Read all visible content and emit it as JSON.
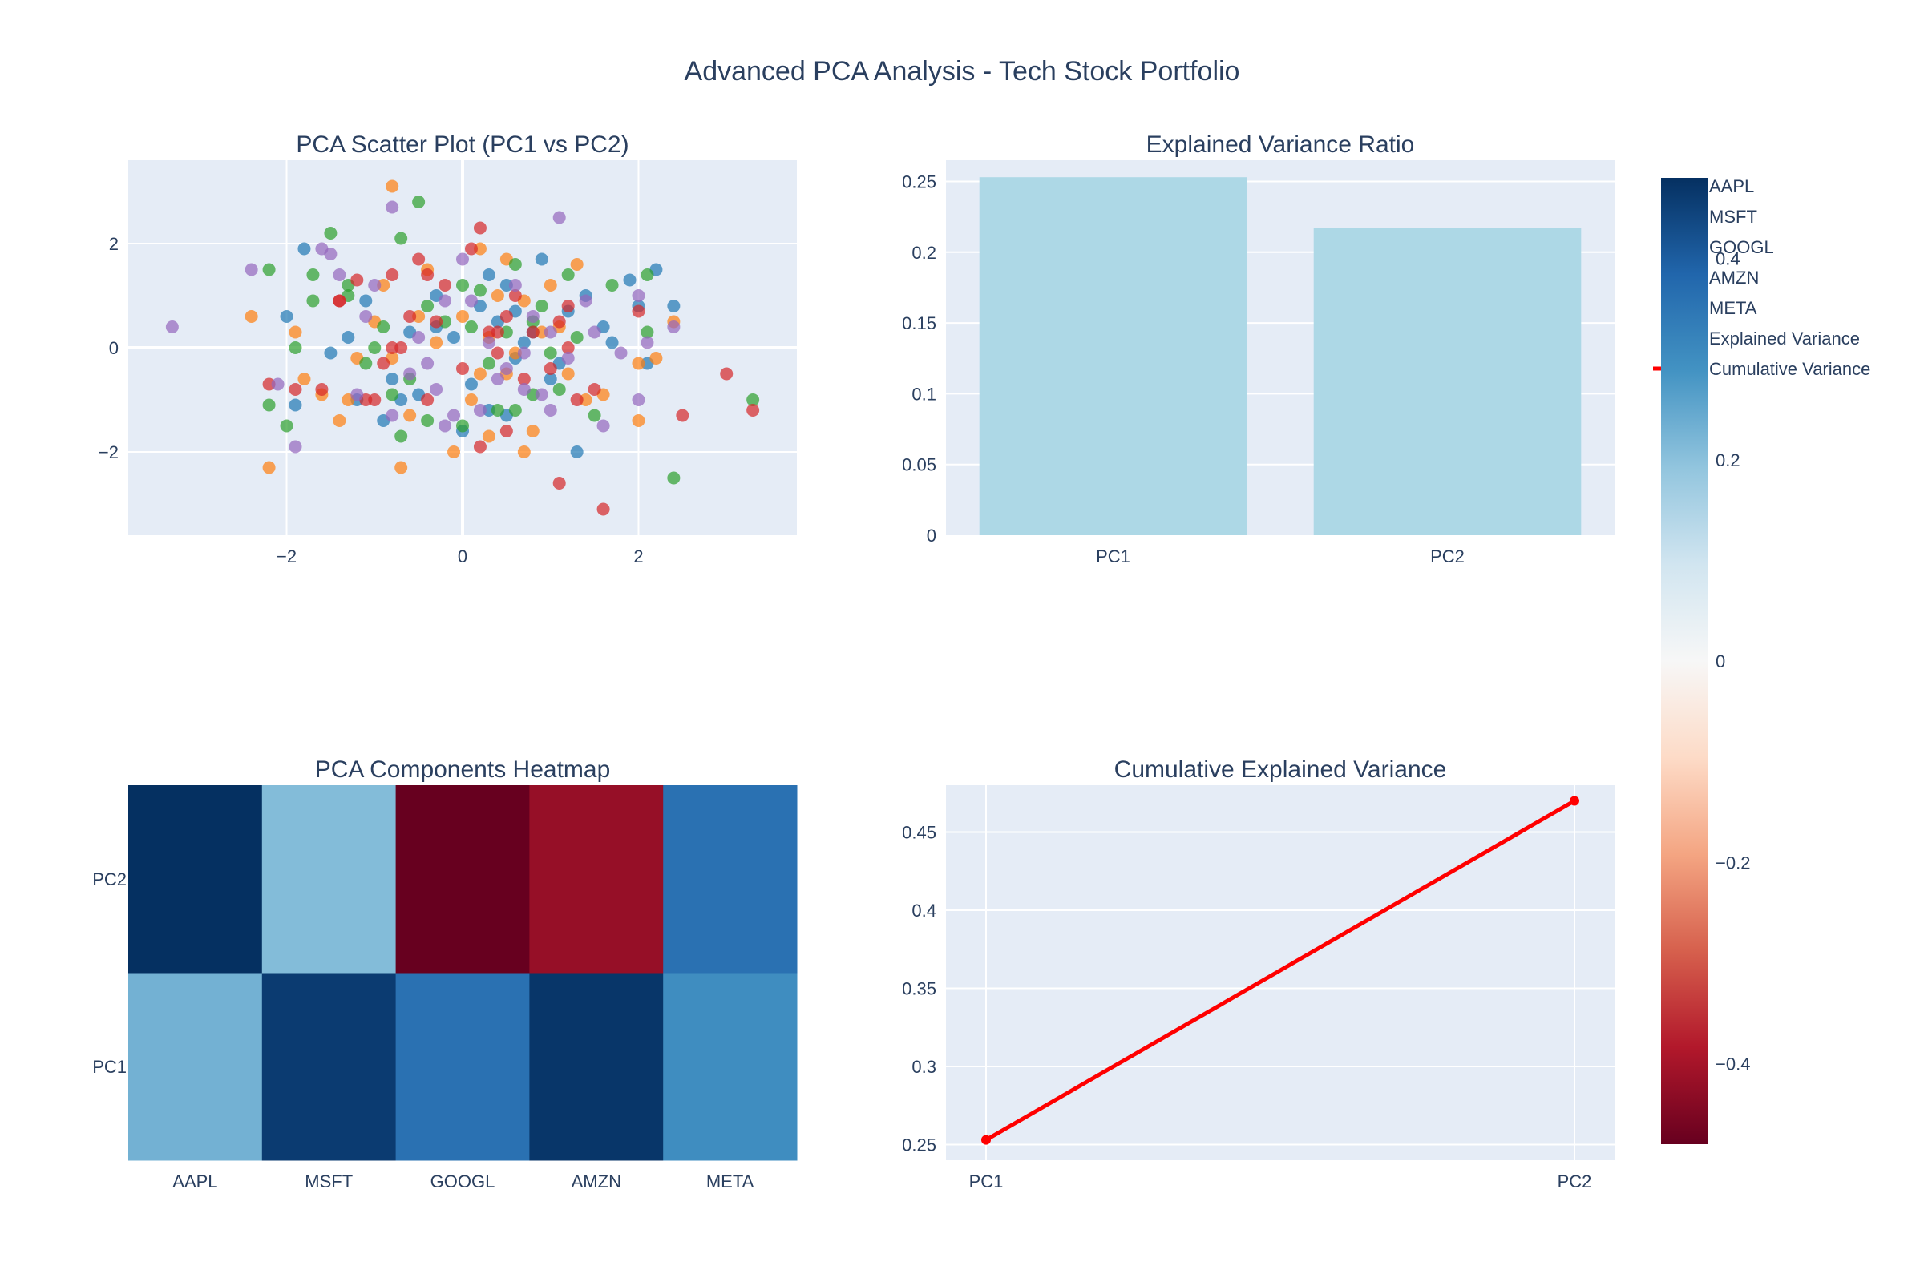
{
  "figure": {
    "title": "Advanced PCA Analysis - Tech Stock Portfolio",
    "colors": {
      "AAPL": "#1f77b4",
      "MSFT": "#ff7f0e",
      "GOOGL": "#2ca02c",
      "AMZN": "#d62728",
      "META": "#9467bd",
      "bar": "#add8e6",
      "line": "#ff0000"
    }
  },
  "chart_data": [
    {
      "type": "scatter",
      "title": "PCA Scatter Plot (PC1 vs PC2)",
      "xlabel": "",
      "ylabel": "",
      "xlim": [
        -3.8,
        3.8
      ],
      "ylim": [
        -3.6,
        3.6
      ],
      "xticks": [
        -2,
        0,
        2
      ],
      "yticks": [
        -2,
        0,
        2
      ],
      "xtick_labels": [
        "−2",
        "0",
        "2"
      ],
      "ytick_labels": [
        "−2",
        "0",
        "2"
      ],
      "series": [
        {
          "name": "AAPL",
          "points": [
            [
              -1.8,
              1.9
            ],
            [
              -2.0,
              0.6
            ],
            [
              -1.5,
              -0.1
            ],
            [
              -1.1,
              0.9
            ],
            [
              -0.8,
              -0.6
            ],
            [
              -0.6,
              0.3
            ],
            [
              -0.5,
              -0.9
            ],
            [
              -0.3,
              1.0
            ],
            [
              -0.1,
              0.2
            ],
            [
              0.1,
              -0.7
            ],
            [
              0.2,
              0.8
            ],
            [
              0.3,
              -1.2
            ],
            [
              0.4,
              0.5
            ],
            [
              0.5,
              1.2
            ],
            [
              0.6,
              -0.2
            ],
            [
              0.8,
              0.3
            ],
            [
              0.9,
              1.7
            ],
            [
              1.0,
              -0.6
            ],
            [
              1.2,
              0.7
            ],
            [
              1.4,
              1.0
            ],
            [
              1.6,
              0.4
            ],
            [
              1.9,
              1.3
            ],
            [
              2.1,
              -0.3
            ],
            [
              2.2,
              1.5
            ],
            [
              2.4,
              0.8
            ],
            [
              1.3,
              -2.0
            ],
            [
              0.5,
              -1.3
            ],
            [
              -1.2,
              -1.0
            ],
            [
              -0.9,
              -1.4
            ],
            [
              0.7,
              0.1
            ],
            [
              1.1,
              -0.3
            ],
            [
              -0.3,
              0.4
            ],
            [
              -1.9,
              -1.1
            ],
            [
              0.0,
              -1.6
            ],
            [
              0.3,
              1.4
            ],
            [
              1.7,
              0.1
            ],
            [
              -1.3,
              0.2
            ],
            [
              0.6,
              0.7
            ],
            [
              -0.7,
              -1.0
            ],
            [
              2.0,
              0.8
            ]
          ]
        },
        {
          "name": "MSFT",
          "points": [
            [
              -2.4,
              0.6
            ],
            [
              -2.2,
              -2.3
            ],
            [
              -1.9,
              0.3
            ],
            [
              -1.6,
              -0.9
            ],
            [
              -1.4,
              -1.4
            ],
            [
              -1.2,
              -0.2
            ],
            [
              -1.0,
              0.5
            ],
            [
              -0.8,
              -0.2
            ],
            [
              -0.8,
              3.1
            ],
            [
              -0.7,
              -2.3
            ],
            [
              -0.5,
              0.6
            ],
            [
              -0.3,
              0.1
            ],
            [
              -0.1,
              -2.0
            ],
            [
              0.0,
              0.6
            ],
            [
              0.2,
              -0.5
            ],
            [
              0.3,
              0.2
            ],
            [
              0.4,
              1.0
            ],
            [
              0.5,
              1.7
            ],
            [
              0.6,
              -0.1
            ],
            [
              0.7,
              0.9
            ],
            [
              0.7,
              -2.0
            ],
            [
              0.9,
              0.3
            ],
            [
              1.0,
              1.2
            ],
            [
              1.2,
              -0.5
            ],
            [
              1.3,
              1.6
            ],
            [
              1.6,
              -0.9
            ],
            [
              2.0,
              -1.4
            ],
            [
              2.2,
              -0.2
            ],
            [
              2.4,
              0.5
            ],
            [
              -1.3,
              -1.0
            ],
            [
              -0.4,
              1.5
            ],
            [
              0.1,
              -1.0
            ],
            [
              0.8,
              -1.6
            ],
            [
              -0.6,
              -1.3
            ],
            [
              1.1,
              0.4
            ],
            [
              0.3,
              -1.7
            ],
            [
              -1.8,
              -0.6
            ],
            [
              1.4,
              -1.0
            ],
            [
              0.5,
              -0.5
            ],
            [
              -0.9,
              1.2
            ],
            [
              0.2,
              1.9
            ],
            [
              2.0,
              -0.3
            ]
          ]
        },
        {
          "name": "GOOGL",
          "points": [
            [
              -2.2,
              -1.1
            ],
            [
              -2.0,
              -1.5
            ],
            [
              -1.9,
              0.0
            ],
            [
              -1.7,
              0.9
            ],
            [
              -1.5,
              2.2
            ],
            [
              -1.3,
              1.0
            ],
            [
              -1.1,
              -0.3
            ],
            [
              -0.9,
              0.4
            ],
            [
              -0.7,
              -1.7
            ],
            [
              -0.7,
              2.1
            ],
            [
              -0.5,
              2.8
            ],
            [
              -0.4,
              -1.4
            ],
            [
              -0.2,
              0.5
            ],
            [
              0.0,
              -1.5
            ],
            [
              0.1,
              0.4
            ],
            [
              0.3,
              -0.3
            ],
            [
              0.4,
              -1.2
            ],
            [
              0.5,
              0.3
            ],
            [
              0.6,
              1.6
            ],
            [
              0.8,
              -0.9
            ],
            [
              0.9,
              0.8
            ],
            [
              1.0,
              -0.1
            ],
            [
              1.1,
              -0.8
            ],
            [
              1.3,
              0.2
            ],
            [
              1.5,
              -1.3
            ],
            [
              1.7,
              1.2
            ],
            [
              2.1,
              0.3
            ],
            [
              2.4,
              -2.5
            ],
            [
              3.3,
              -1.0
            ],
            [
              -1.7,
              1.4
            ],
            [
              -1.3,
              1.2
            ],
            [
              -0.6,
              -0.6
            ],
            [
              0.2,
              1.1
            ],
            [
              0.6,
              -1.2
            ],
            [
              1.2,
              1.4
            ],
            [
              2.1,
              1.4
            ],
            [
              0.0,
              1.2
            ],
            [
              -1.0,
              0.0
            ],
            [
              0.8,
              0.5
            ],
            [
              -0.4,
              0.8
            ],
            [
              -2.2,
              1.5
            ],
            [
              -0.8,
              -0.9
            ]
          ]
        },
        {
          "name": "AMZN",
          "points": [
            [
              -2.2,
              -0.7
            ],
            [
              -1.9,
              -0.8
            ],
            [
              -1.6,
              -0.8
            ],
            [
              -1.4,
              0.9
            ],
            [
              -1.2,
              1.3
            ],
            [
              -1.0,
              -1.0
            ],
            [
              -0.9,
              -0.3
            ],
            [
              -0.8,
              1.4
            ],
            [
              -0.6,
              0.6
            ],
            [
              -0.5,
              1.7
            ],
            [
              -0.4,
              -1.0
            ],
            [
              -0.3,
              0.5
            ],
            [
              -0.2,
              1.2
            ],
            [
              0.0,
              -0.4
            ],
            [
              0.1,
              1.9
            ],
            [
              0.2,
              2.3
            ],
            [
              0.3,
              0.3
            ],
            [
              0.4,
              -0.1
            ],
            [
              0.5,
              0.6
            ],
            [
              0.6,
              1.0
            ],
            [
              0.7,
              -0.6
            ],
            [
              0.8,
              0.3
            ],
            [
              1.0,
              -0.4
            ],
            [
              1.1,
              0.5
            ],
            [
              1.2,
              0.0
            ],
            [
              1.3,
              -1.0
            ],
            [
              1.5,
              -0.8
            ],
            [
              1.6,
              -3.1
            ],
            [
              2.0,
              0.7
            ],
            [
              2.5,
              -1.3
            ],
            [
              3.0,
              -0.5
            ],
            [
              3.3,
              -1.2
            ],
            [
              -1.1,
              -1.0
            ],
            [
              -0.7,
              0.0
            ],
            [
              0.2,
              -1.9
            ],
            [
              0.5,
              -1.6
            ],
            [
              1.2,
              0.8
            ],
            [
              -0.4,
              1.4
            ],
            [
              0.4,
              0.3
            ],
            [
              -1.4,
              0.9
            ],
            [
              1.1,
              -2.6
            ],
            [
              -0.8,
              0.0
            ]
          ]
        },
        {
          "name": "META",
          "points": [
            [
              -3.3,
              0.4
            ],
            [
              -2.4,
              1.5
            ],
            [
              -2.1,
              -0.7
            ],
            [
              -1.9,
              -1.9
            ],
            [
              -1.6,
              1.9
            ],
            [
              -1.4,
              1.4
            ],
            [
              -1.2,
              -0.9
            ],
            [
              -1.0,
              1.2
            ],
            [
              -0.8,
              -1.3
            ],
            [
              -0.8,
              2.7
            ],
            [
              -0.6,
              -0.5
            ],
            [
              -0.5,
              0.2
            ],
            [
              -0.3,
              -0.8
            ],
            [
              -0.2,
              0.9
            ],
            [
              -0.1,
              -1.3
            ],
            [
              0.0,
              1.7
            ],
            [
              0.2,
              -1.2
            ],
            [
              0.3,
              0.1
            ],
            [
              0.5,
              -0.4
            ],
            [
              0.6,
              1.2
            ],
            [
              0.7,
              -0.8
            ],
            [
              0.8,
              0.6
            ],
            [
              0.9,
              -0.9
            ],
            [
              1.0,
              -1.2
            ],
            [
              1.1,
              2.5
            ],
            [
              1.2,
              -0.2
            ],
            [
              1.4,
              0.9
            ],
            [
              1.6,
              -1.5
            ],
            [
              1.8,
              -0.1
            ],
            [
              2.0,
              -1.0
            ],
            [
              2.1,
              0.1
            ],
            [
              2.4,
              0.4
            ],
            [
              -1.5,
              1.8
            ],
            [
              -0.4,
              -0.3
            ],
            [
              0.1,
              0.9
            ],
            [
              0.7,
              -0.1
            ],
            [
              1.5,
              0.3
            ],
            [
              -1.1,
              0.6
            ],
            [
              0.4,
              -0.6
            ],
            [
              1.0,
              0.3
            ],
            [
              -0.2,
              -1.5
            ],
            [
              2.0,
              1.0
            ]
          ]
        }
      ]
    },
    {
      "type": "bar",
      "title": "Explained Variance Ratio",
      "xlabel": "",
      "ylabel": "",
      "categories": [
        "PC1",
        "PC2"
      ],
      "values": [
        0.253,
        0.217
      ],
      "ylim": [
        0,
        0.265
      ],
      "yticks": [
        0,
        0.05,
        0.1,
        0.15,
        0.2,
        0.25
      ],
      "ytick_labels": [
        "0",
        "0.05",
        "0.1",
        "0.15",
        "0.2",
        "0.25"
      ]
    },
    {
      "type": "heatmap",
      "title": "PCA Components Heatmap",
      "xlabel": "",
      "ylabel": "",
      "x": [
        "AAPL",
        "MSFT",
        "GOOGL",
        "AMZN",
        "META"
      ],
      "y": [
        "PC1",
        "PC2"
      ],
      "z": [
        [
          0.23,
          0.46,
          0.36,
          0.47,
          0.3
        ],
        [
          0.48,
          0.21,
          -0.48,
          -0.42,
          0.36
        ]
      ],
      "colorscale": "RdBu",
      "zlim": [
        -0.48,
        0.48
      ],
      "colorbar_ticks": [
        -0.4,
        -0.2,
        0,
        0.2,
        0.4
      ],
      "colorbar_tick_labels": [
        "−0.4",
        "−0.2",
        "0",
        "0.2",
        "0.4"
      ]
    },
    {
      "type": "line",
      "title": "Cumulative Explained Variance",
      "xlabel": "",
      "ylabel": "",
      "x": [
        "PC1",
        "PC2"
      ],
      "values": [
        0.253,
        0.47
      ],
      "ylim": [
        0.24,
        0.48
      ],
      "yticks": [
        0.25,
        0.3,
        0.35,
        0.4,
        0.45
      ],
      "ytick_labels": [
        "0.25",
        "0.3",
        "0.35",
        "0.4",
        "0.45"
      ]
    }
  ],
  "legend": {
    "placement": "right",
    "items": [
      "AAPL",
      "MSFT",
      "GOOGL",
      "AMZN",
      "META",
      "Explained Variance",
      "Cumulative Variance"
    ]
  }
}
